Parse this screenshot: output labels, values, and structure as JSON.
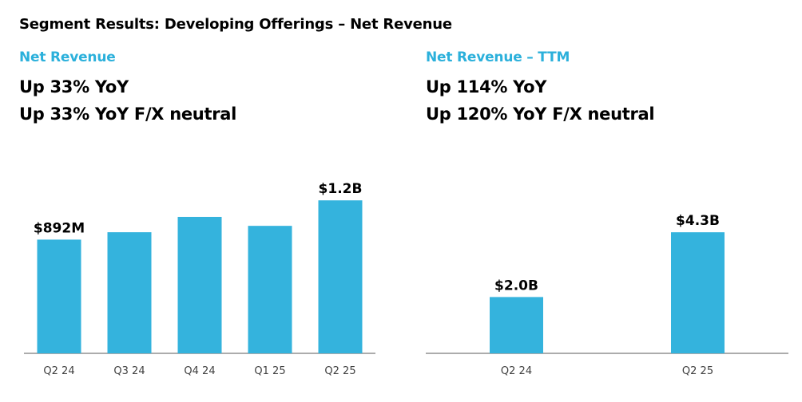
{
  "title": "Segment Results: Developing Offerings – Net Revenue",
  "colors": {
    "accent": "#2BB0DB",
    "bar": "#34B3DD",
    "axis": "#595959",
    "text": "#000000"
  },
  "left_panel": {
    "heading": "Net Revenue",
    "stats": [
      "Up 33% YoY",
      "Up 33% YoY F/X neutral"
    ]
  },
  "right_panel": {
    "heading": "Net Revenue – TTM",
    "stats": [
      "Up 114% YoY",
      "Up 120% YoY F/X neutral"
    ]
  },
  "chart_data": [
    {
      "type": "bar",
      "title": "Net Revenue",
      "categories": [
        "Q2 24",
        "Q3 24",
        "Q4 24",
        "Q1 25",
        "Q2 25"
      ],
      "values": [
        0.892,
        0.95,
        1.07,
        1.0,
        1.2
      ],
      "data_labels": [
        "$892M",
        "",
        "",
        "",
        "$1.2B"
      ],
      "units": "$B",
      "ylim": [
        0,
        1.27
      ]
    },
    {
      "type": "bar",
      "title": "Net Revenue – TTM",
      "categories": [
        "Q2 24",
        "Q2 25"
      ],
      "values": [
        2.0,
        4.3
      ],
      "data_labels": [
        "$2.0B",
        "$4.3B"
      ],
      "units": "$B",
      "ylim": [
        0,
        5.75
      ]
    }
  ]
}
